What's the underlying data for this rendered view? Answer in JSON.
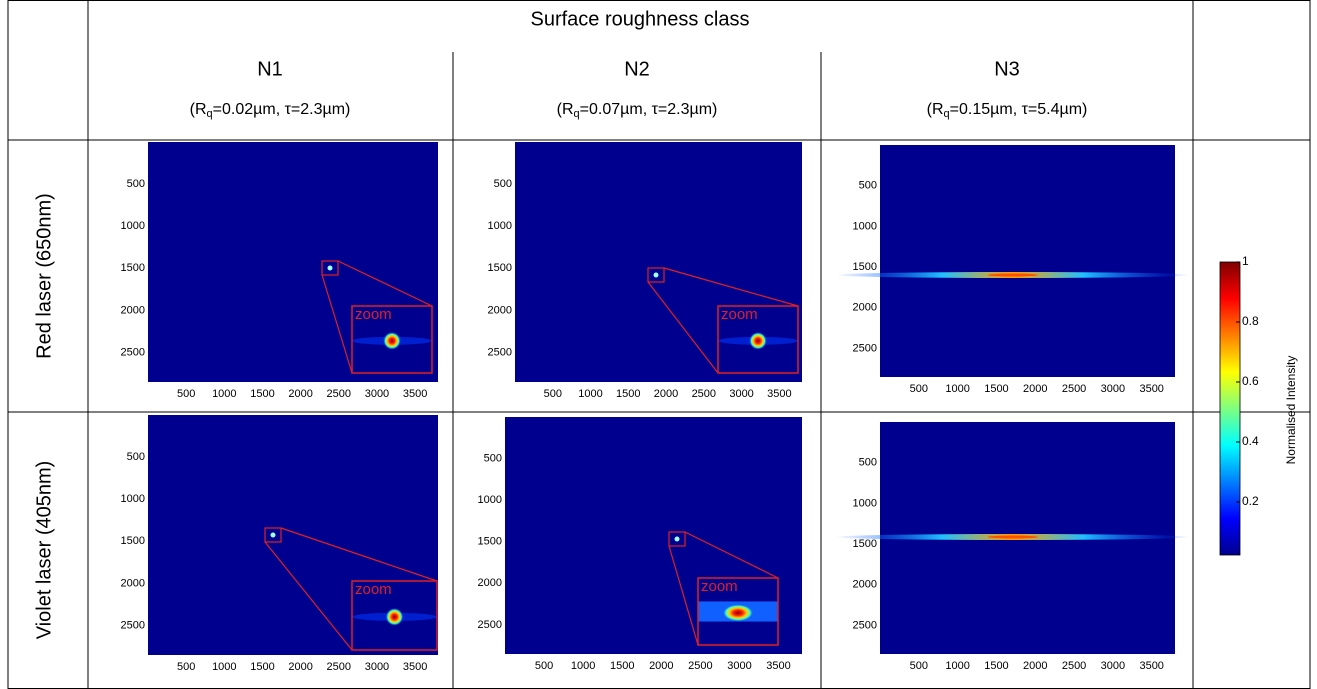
{
  "header": {
    "title": "Surface roughness class"
  },
  "columns": [
    {
      "name": "N1",
      "params": {
        "pre": "(R",
        "sub": "q",
        "post": "=0.02µm, τ=2.3µm)"
      }
    },
    {
      "name": "N2",
      "params": {
        "pre": "(R",
        "sub": "q",
        "post": "=0.07µm, τ=2.3µm)"
      }
    },
    {
      "name": "N3",
      "params": {
        "pre": "(R",
        "sub": "q",
        "post": "=0.15µm, τ=5.4µm)"
      }
    }
  ],
  "rows": [
    {
      "label": "Red laser (650nm)"
    },
    {
      "label": "Violet laser (405nm)"
    }
  ],
  "axes": {
    "xticks": [
      500,
      1000,
      1500,
      2000,
      2500,
      3000,
      3500
    ],
    "yticks": [
      500,
      1000,
      1500,
      2000,
      2500
    ]
  },
  "zoom_label": "zoom",
  "colorbar": {
    "label": "Normalised Intensity",
    "ticks": [
      0.2,
      0.4,
      0.6,
      0.8,
      1
    ]
  }
}
